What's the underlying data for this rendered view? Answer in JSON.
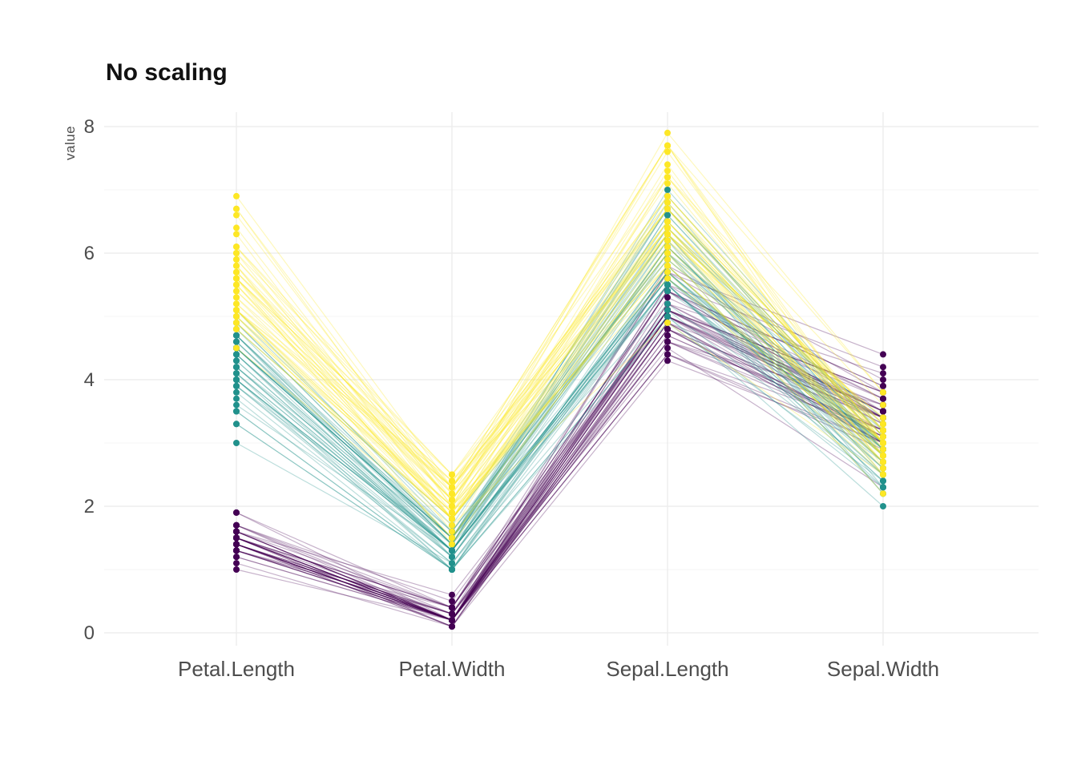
{
  "page": {
    "background": "#ffffff"
  },
  "chart_data": {
    "type": "parallel-coordinates",
    "title": "No scaling",
    "ylabel": "value",
    "xlabel": "",
    "axes": [
      "Petal.Length",
      "Petal.Width",
      "Sepal.Length",
      "Sepal.Width"
    ],
    "y_ticks": [
      0,
      2,
      4,
      6,
      8
    ],
    "y_minor_ticks": [
      1,
      3,
      5,
      7
    ],
    "ylim": [
      0,
      8
    ],
    "grid": true,
    "legend": "none",
    "line_alpha": 0.3,
    "point_radius": 4,
    "groups": [
      {
        "name": "purple",
        "color": "#440154",
        "rows": [
          [
            1.4,
            0.2,
            5.1,
            3.5
          ],
          [
            1.4,
            0.2,
            4.9,
            3.0
          ],
          [
            1.3,
            0.2,
            4.7,
            3.2
          ],
          [
            1.5,
            0.2,
            4.6,
            3.1
          ],
          [
            1.4,
            0.2,
            5.0,
            3.6
          ],
          [
            1.7,
            0.4,
            5.4,
            3.9
          ],
          [
            1.4,
            0.3,
            4.6,
            3.4
          ],
          [
            1.5,
            0.2,
            5.0,
            3.4
          ],
          [
            1.4,
            0.2,
            4.4,
            2.9
          ],
          [
            1.5,
            0.1,
            4.9,
            3.1
          ],
          [
            1.5,
            0.2,
            5.4,
            3.7
          ],
          [
            1.6,
            0.2,
            4.8,
            3.4
          ],
          [
            1.4,
            0.1,
            4.8,
            3.0
          ],
          [
            1.1,
            0.1,
            4.3,
            3.0
          ],
          [
            1.2,
            0.2,
            5.8,
            4.0
          ],
          [
            1.5,
            0.4,
            5.7,
            4.4
          ],
          [
            1.3,
            0.4,
            5.4,
            3.9
          ],
          [
            1.4,
            0.3,
            5.1,
            3.5
          ],
          [
            1.7,
            0.3,
            5.7,
            3.8
          ],
          [
            1.5,
            0.3,
            5.1,
            3.8
          ],
          [
            1.7,
            0.2,
            5.4,
            3.4
          ],
          [
            1.5,
            0.4,
            5.1,
            3.7
          ],
          [
            1.0,
            0.2,
            4.6,
            3.6
          ],
          [
            1.7,
            0.5,
            5.1,
            3.3
          ],
          [
            1.9,
            0.2,
            4.8,
            3.4
          ],
          [
            1.6,
            0.2,
            5.0,
            3.0
          ],
          [
            1.6,
            0.4,
            5.0,
            3.4
          ],
          [
            1.5,
            0.2,
            5.2,
            3.5
          ],
          [
            1.4,
            0.2,
            5.2,
            3.4
          ],
          [
            1.6,
            0.2,
            4.7,
            3.2
          ],
          [
            1.6,
            0.2,
            4.8,
            3.1
          ],
          [
            1.5,
            0.4,
            5.4,
            3.4
          ],
          [
            1.5,
            0.1,
            5.2,
            4.1
          ],
          [
            1.4,
            0.2,
            5.5,
            4.2
          ],
          [
            1.5,
            0.2,
            4.9,
            3.1
          ],
          [
            1.2,
            0.2,
            5.0,
            3.2
          ],
          [
            1.3,
            0.2,
            5.5,
            3.5
          ],
          [
            1.4,
            0.1,
            4.9,
            3.6
          ],
          [
            1.3,
            0.2,
            4.4,
            3.0
          ],
          [
            1.5,
            0.2,
            5.1,
            3.4
          ],
          [
            1.3,
            0.3,
            5.0,
            3.5
          ],
          [
            1.3,
            0.3,
            4.5,
            2.3
          ],
          [
            1.3,
            0.2,
            4.4,
            3.2
          ],
          [
            1.6,
            0.6,
            5.0,
            3.5
          ],
          [
            1.9,
            0.4,
            5.1,
            3.8
          ],
          [
            1.4,
            0.3,
            4.8,
            3.0
          ],
          [
            1.6,
            0.2,
            5.1,
            3.8
          ],
          [
            1.4,
            0.2,
            4.6,
            3.2
          ],
          [
            1.5,
            0.2,
            5.3,
            3.7
          ],
          [
            1.4,
            0.2,
            5.0,
            3.3
          ]
        ]
      },
      {
        "name": "teal",
        "color": "#21918c",
        "rows": [
          [
            4.7,
            1.4,
            7.0,
            3.2
          ],
          [
            4.5,
            1.5,
            6.4,
            3.2
          ],
          [
            4.9,
            1.5,
            6.9,
            3.1
          ],
          [
            4.0,
            1.3,
            5.5,
            2.3
          ],
          [
            4.6,
            1.5,
            6.5,
            2.8
          ],
          [
            4.5,
            1.3,
            5.7,
            2.8
          ],
          [
            4.7,
            1.6,
            6.3,
            3.3
          ],
          [
            3.3,
            1.0,
            4.9,
            2.4
          ],
          [
            4.6,
            1.3,
            6.6,
            2.9
          ],
          [
            3.9,
            1.4,
            5.2,
            2.7
          ],
          [
            3.5,
            1.0,
            5.0,
            2.0
          ],
          [
            4.2,
            1.5,
            5.9,
            3.0
          ],
          [
            4.0,
            1.0,
            6.0,
            2.2
          ],
          [
            4.7,
            1.4,
            6.1,
            2.9
          ],
          [
            3.6,
            1.3,
            5.6,
            2.9
          ],
          [
            4.4,
            1.4,
            6.7,
            3.1
          ],
          [
            4.5,
            1.5,
            5.6,
            3.0
          ],
          [
            4.1,
            1.0,
            5.8,
            2.7
          ],
          [
            4.5,
            1.5,
            6.2,
            2.2
          ],
          [
            3.9,
            1.1,
            5.6,
            2.5
          ],
          [
            4.8,
            1.8,
            5.9,
            3.2
          ],
          [
            4.0,
            1.3,
            6.1,
            2.8
          ],
          [
            4.9,
            1.5,
            6.3,
            2.5
          ],
          [
            4.7,
            1.2,
            6.1,
            2.8
          ],
          [
            4.3,
            1.3,
            6.4,
            2.9
          ],
          [
            4.4,
            1.4,
            6.6,
            3.0
          ],
          [
            4.8,
            1.4,
            6.8,
            2.8
          ],
          [
            5.0,
            1.7,
            6.7,
            3.0
          ],
          [
            4.5,
            1.5,
            6.0,
            2.9
          ],
          [
            3.5,
            1.0,
            5.7,
            2.6
          ],
          [
            3.8,
            1.1,
            5.5,
            2.4
          ],
          [
            3.7,
            1.0,
            5.5,
            2.4
          ],
          [
            3.9,
            1.2,
            5.8,
            2.7
          ],
          [
            5.1,
            1.6,
            6.0,
            2.7
          ],
          [
            4.5,
            1.5,
            5.4,
            3.0
          ],
          [
            4.5,
            1.6,
            6.0,
            3.4
          ],
          [
            4.7,
            1.5,
            6.7,
            3.1
          ],
          [
            4.4,
            1.3,
            6.3,
            2.3
          ],
          [
            4.1,
            1.3,
            5.6,
            3.0
          ],
          [
            4.0,
            1.3,
            5.5,
            2.5
          ],
          [
            4.4,
            1.2,
            5.5,
            2.6
          ],
          [
            4.6,
            1.4,
            6.1,
            3.0
          ],
          [
            4.0,
            1.2,
            5.8,
            2.6
          ],
          [
            3.3,
            1.0,
            5.0,
            2.3
          ],
          [
            4.2,
            1.3,
            5.6,
            2.7
          ],
          [
            4.2,
            1.2,
            5.7,
            3.0
          ],
          [
            4.2,
            1.3,
            5.7,
            2.9
          ],
          [
            4.3,
            1.3,
            6.2,
            2.9
          ],
          [
            3.0,
            1.1,
            5.1,
            2.5
          ],
          [
            4.1,
            1.3,
            5.7,
            2.8
          ]
        ]
      },
      {
        "name": "yellow",
        "color": "#fde725",
        "rows": [
          [
            6.0,
            2.5,
            6.3,
            3.3
          ],
          [
            5.1,
            1.9,
            5.8,
            2.7
          ],
          [
            5.9,
            2.1,
            7.1,
            3.0
          ],
          [
            5.6,
            1.8,
            6.3,
            2.9
          ],
          [
            5.8,
            2.2,
            6.5,
            3.0
          ],
          [
            6.6,
            2.1,
            7.6,
            3.0
          ],
          [
            4.5,
            1.7,
            4.9,
            2.5
          ],
          [
            6.3,
            1.8,
            7.3,
            2.9
          ],
          [
            5.8,
            1.8,
            6.7,
            2.5
          ],
          [
            6.1,
            2.5,
            7.2,
            3.6
          ],
          [
            5.1,
            2.0,
            6.5,
            3.2
          ],
          [
            5.3,
            1.9,
            6.4,
            2.7
          ],
          [
            5.5,
            2.1,
            6.8,
            3.0
          ],
          [
            5.0,
            2.0,
            5.7,
            2.5
          ],
          [
            5.1,
            2.4,
            5.8,
            2.8
          ],
          [
            5.3,
            2.3,
            6.4,
            3.2
          ],
          [
            5.5,
            1.8,
            6.5,
            3.0
          ],
          [
            6.7,
            2.2,
            7.7,
            3.8
          ],
          [
            6.9,
            2.3,
            7.7,
            2.6
          ],
          [
            5.0,
            1.5,
            6.0,
            2.2
          ],
          [
            5.7,
            2.3,
            6.9,
            3.2
          ],
          [
            4.9,
            2.0,
            5.6,
            2.8
          ],
          [
            6.7,
            2.0,
            7.7,
            2.8
          ],
          [
            4.9,
            1.8,
            6.3,
            2.7
          ],
          [
            5.7,
            2.1,
            6.7,
            3.3
          ],
          [
            6.0,
            1.8,
            7.2,
            3.2
          ],
          [
            4.8,
            1.8,
            6.2,
            2.8
          ],
          [
            4.9,
            1.8,
            6.1,
            3.0
          ],
          [
            5.6,
            2.1,
            6.4,
            2.8
          ],
          [
            5.8,
            1.6,
            7.2,
            3.0
          ],
          [
            6.1,
            1.9,
            7.4,
            2.8
          ],
          [
            6.4,
            2.0,
            7.9,
            3.8
          ],
          [
            5.6,
            2.2,
            6.4,
            2.8
          ],
          [
            5.1,
            1.5,
            6.3,
            2.8
          ],
          [
            5.6,
            1.4,
            6.1,
            2.6
          ],
          [
            6.1,
            2.3,
            7.7,
            3.0
          ],
          [
            5.6,
            2.4,
            6.3,
            3.4
          ],
          [
            5.5,
            1.8,
            6.4,
            3.1
          ],
          [
            4.8,
            1.8,
            6.0,
            3.0
          ],
          [
            5.4,
            2.1,
            6.9,
            3.1
          ],
          [
            5.6,
            2.4,
            6.7,
            3.1
          ],
          [
            5.1,
            2.3,
            6.9,
            3.1
          ],
          [
            5.1,
            1.9,
            5.8,
            2.7
          ],
          [
            5.9,
            2.3,
            6.8,
            3.2
          ],
          [
            5.7,
            2.5,
            6.7,
            3.3
          ],
          [
            5.2,
            2.3,
            6.7,
            3.0
          ],
          [
            5.0,
            1.9,
            6.3,
            2.5
          ],
          [
            5.2,
            2.0,
            6.5,
            3.0
          ],
          [
            5.4,
            2.3,
            6.2,
            3.4
          ],
          [
            5.1,
            1.8,
            5.9,
            3.0
          ]
        ]
      }
    ]
  }
}
